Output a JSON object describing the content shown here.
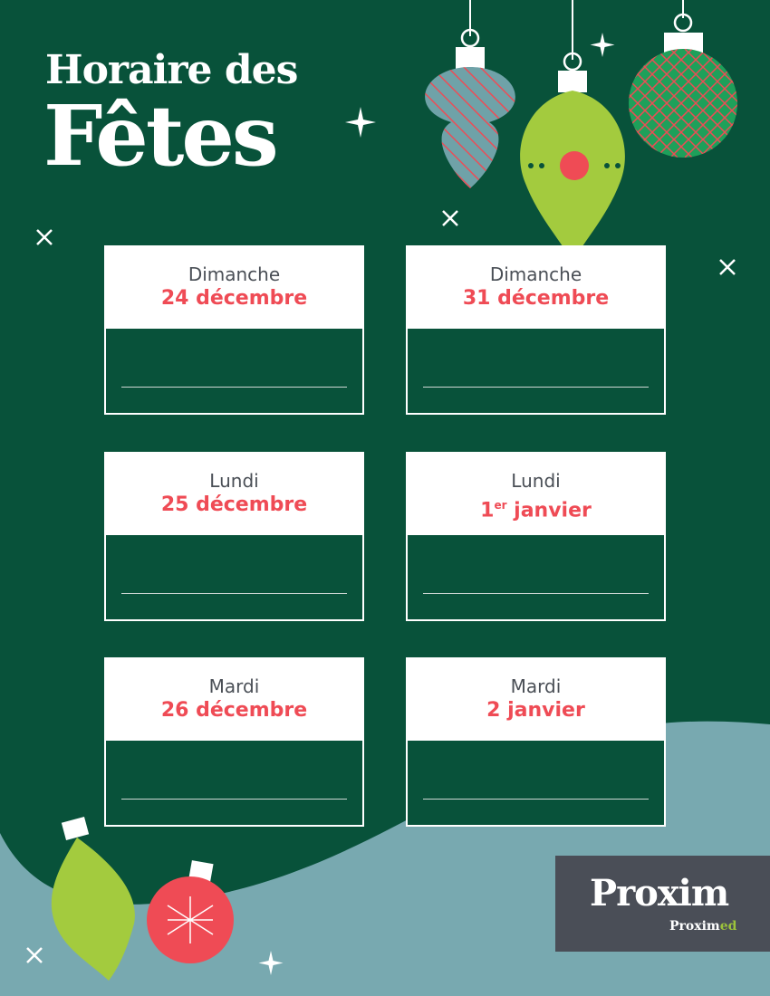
{
  "title": {
    "line1": "Horaire des",
    "line2": "Fêtes"
  },
  "cards": [
    {
      "day": "Dimanche",
      "date": "24 décembre",
      "date_sup": ""
    },
    {
      "day": "Dimanche",
      "date": "31 décembre",
      "date_sup": ""
    },
    {
      "day": "Lundi",
      "date": "25 décembre",
      "date_sup": ""
    },
    {
      "day": "Lundi",
      "date_prefix": "1",
      "date_sup": "er",
      "date": " janvier"
    },
    {
      "day": "Mardi",
      "date": "26 décembre",
      "date_sup": ""
    },
    {
      "day": "Mardi",
      "date": "2 janvier",
      "date_sup": ""
    }
  ],
  "logo": {
    "brand": "Proxim",
    "sub_brand_a": "Proxim",
    "sub_brand_b": "ed"
  },
  "colors": {
    "background": "#08523a",
    "wave": "#78a9b0",
    "accent_red": "#ef4b55",
    "ornament_green": "#a3cb3e",
    "ornament_teal": "#6fa2a8",
    "logo_bg": "#4a4e57"
  }
}
